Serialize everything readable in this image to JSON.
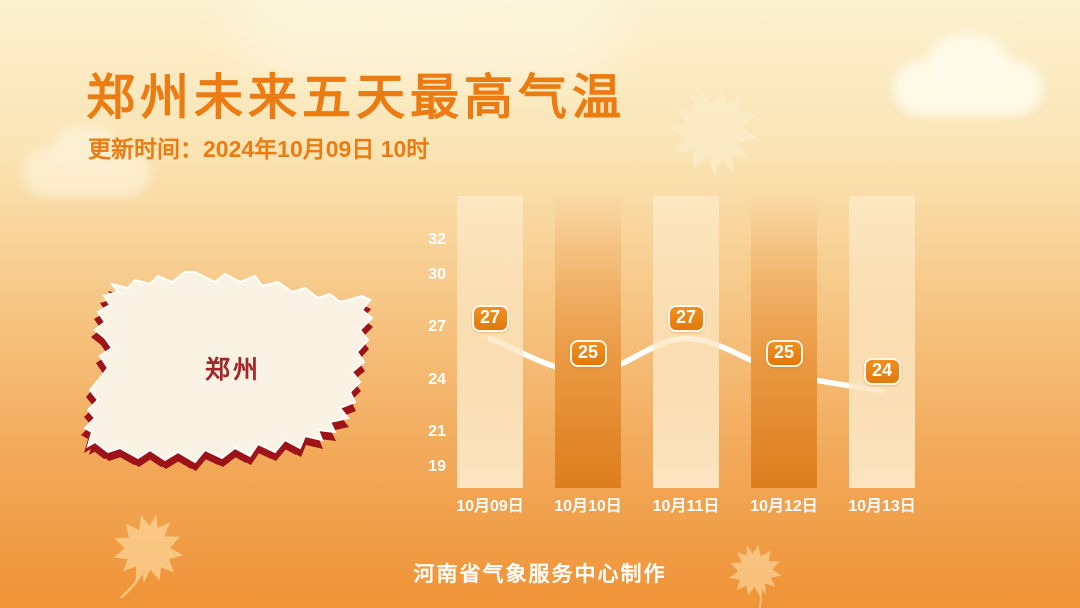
{
  "header": {
    "title": "郑州未来五天最高气温",
    "subtitle": "更新时间：2024年10月09日 10时"
  },
  "map": {
    "label": "郑州"
  },
  "footer": {
    "credit": "河南省气象服务中心制作"
  },
  "chart_data": {
    "type": "line",
    "title": "郑州未来五天最高气温",
    "categories": [
      "10月09日",
      "10月10日",
      "10月11日",
      "10月12日",
      "10月13日"
    ],
    "values": [
      27,
      25,
      27,
      25,
      24
    ],
    "yticks": [
      32,
      30,
      27,
      24,
      21,
      19
    ],
    "ylim": [
      19,
      32
    ],
    "xlabel": "",
    "ylabel": "",
    "grid": false,
    "legend": "none",
    "data_labels": true,
    "line_style": "smooth white curve over alternating light/dark background columns"
  },
  "colors": {
    "accent_orange": "#EC7C12",
    "badge_fill": "#E2790D",
    "badge_border": "#FFF8EA",
    "line": "#FFFFFF",
    "axis_text": "#FFFFFF",
    "map_fill": "#FAF2E2",
    "map_stroke": "#FFFFFF",
    "map_shadow": "#9D1318",
    "map_label": "#A4262B"
  },
  "icons": {
    "decor": [
      "maple-leaf-icon",
      "cloud-icon"
    ]
  }
}
